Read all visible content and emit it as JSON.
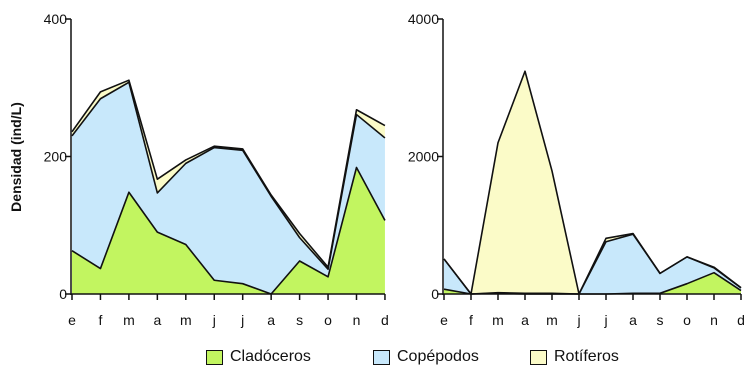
{
  "chart_data": [
    {
      "type": "area",
      "stacked": true,
      "categories": [
        "e",
        "f",
        "m",
        "a",
        "m",
        "j",
        "j",
        "a",
        "s",
        "o",
        "n",
        "d"
      ],
      "ylabel": "Densidad (ind/L)",
      "ylim": [
        0,
        400
      ],
      "yticks": [
        0,
        200,
        400
      ],
      "series": [
        {
          "name": "Cladóceros",
          "color": "#c2f560",
          "values": [
            63,
            37,
            148,
            90,
            72,
            20,
            15,
            0,
            48,
            25,
            184,
            107
          ]
        },
        {
          "name": "Copépodos",
          "color": "#c8e8fb",
          "values": [
            167,
            247,
            160,
            57,
            118,
            193,
            194,
            142,
            34,
            11,
            77,
            120
          ]
        },
        {
          "name": "Rotíferos",
          "color": "#fbfbc8",
          "values": [
            6,
            10,
            3,
            20,
            5,
            2,
            2,
            2,
            6,
            3,
            7,
            18
          ]
        }
      ]
    },
    {
      "type": "area",
      "stacked": true,
      "categories": [
        "e",
        "f",
        "m",
        "a",
        "m",
        "j",
        "j",
        "a",
        "s",
        "o",
        "n",
        "d"
      ],
      "ylabel": "",
      "ylim": [
        0,
        4000
      ],
      "yticks": [
        0,
        2000,
        4000
      ],
      "series": [
        {
          "name": "Cladóceros",
          "color": "#c2f560",
          "values": [
            70,
            0,
            10,
            0,
            0,
            0,
            0,
            10,
            10,
            150,
            310,
            50
          ]
        },
        {
          "name": "Copépodos",
          "color": "#c8e8fb",
          "values": [
            440,
            0,
            10,
            10,
            10,
            0,
            760,
            860,
            290,
            390,
            70,
            40
          ]
        },
        {
          "name": "Rotíferos",
          "color": "#fbfbc8",
          "values": [
            0,
            0,
            2180,
            3230,
            1780,
            0,
            50,
            10,
            0,
            0,
            10,
            0
          ]
        }
      ]
    }
  ],
  "legend": {
    "items": [
      {
        "label": "Cladóceros",
        "color": "#c2f560"
      },
      {
        "label": "Copépodos",
        "color": "#c8e8fb"
      },
      {
        "label": "Rotíferos",
        "color": "#fbfbc8"
      }
    ]
  }
}
